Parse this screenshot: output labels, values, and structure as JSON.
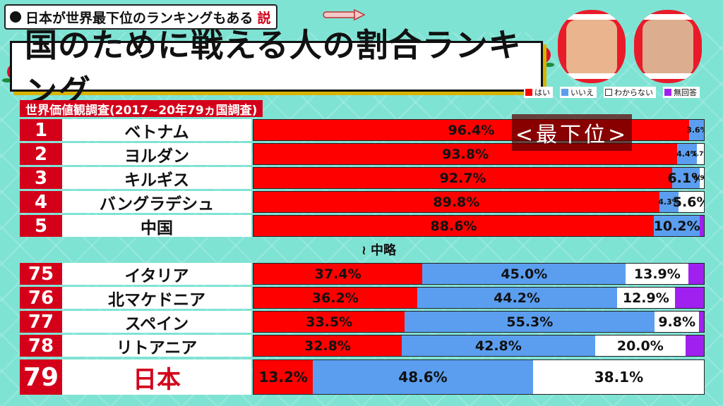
{
  "header": {
    "topic_main": "日本が世界最下位のランキングもある",
    "topic_emph": "説",
    "title": "国のために戦える人の割合ランキング"
  },
  "legend": [
    {
      "label": "はい",
      "color": "#ff0000"
    },
    {
      "label": "いいえ",
      "color": "#5b9ef0"
    },
    {
      "label": "わからない",
      "color": "#ffffff"
    },
    {
      "label": "無回答",
      "color": "#a020f0"
    }
  ],
  "subtitle": "世界価値観調査(2017~20年79ヵ国調査)",
  "omitted_label": "中略",
  "worst_label": "<最下位>",
  "chart_data": {
    "type": "bar",
    "stacked": true,
    "orientation": "horizontal",
    "title": "国のために戦える人の割合ランキング",
    "source_note": "世界価値観調査(2017~20年79ヵ国調査)",
    "series_names": [
      "はい",
      "いいえ",
      "わからない",
      "無回答"
    ],
    "rows": [
      {
        "rank": "1",
        "country": "ベトナム",
        "values": [
          96.4,
          3.6,
          0,
          0
        ],
        "labels": [
          "96.4%",
          "3.6%",
          "",
          ""
        ]
      },
      {
        "rank": "2",
        "country": "ヨルダン",
        "values": [
          93.8,
          4.4,
          1.7,
          0.1
        ],
        "labels": [
          "93.8%",
          "4.4%",
          "1.7%",
          ""
        ]
      },
      {
        "rank": "3",
        "country": "キルギス",
        "values": [
          92.7,
          6.1,
          0.9,
          0.3
        ],
        "labels": [
          "92.7%",
          "6.1%",
          "0.9%",
          ""
        ]
      },
      {
        "rank": "4",
        "country": "バングラデシュ",
        "values": [
          89.8,
          4.3,
          5.6,
          0.3
        ],
        "labels": [
          "89.8%",
          "4.3%",
          "5.6%",
          ""
        ]
      },
      {
        "rank": "5",
        "country": "中国",
        "values": [
          88.6,
          10.2,
          0,
          1.2
        ],
        "labels": [
          "88.6%",
          "10.2%",
          "",
          ""
        ]
      },
      {
        "rank": "75",
        "country": "イタリア",
        "values": [
          37.4,
          45.0,
          13.9,
          3.7
        ],
        "labels": [
          "37.4%",
          "45.0%",
          "13.9%",
          ""
        ]
      },
      {
        "rank": "76",
        "country": "北マケドニア",
        "values": [
          36.2,
          44.2,
          12.9,
          6.7
        ],
        "labels": [
          "36.2%",
          "44.2%",
          "12.9%",
          ""
        ]
      },
      {
        "rank": "77",
        "country": "スペイン",
        "values": [
          33.5,
          55.3,
          9.8,
          1.4
        ],
        "labels": [
          "33.5%",
          "55.3%",
          "9.8%",
          ""
        ]
      },
      {
        "rank": "78",
        "country": "リトアニア",
        "values": [
          32.8,
          42.8,
          20.0,
          4.4
        ],
        "labels": [
          "32.8%",
          "42.8%",
          "20.0%",
          ""
        ]
      },
      {
        "rank": "79",
        "country": "日本",
        "values": [
          13.2,
          48.6,
          38.1,
          0.1
        ],
        "labels": [
          "13.2%",
          "48.6%",
          "38.1%",
          ""
        ]
      }
    ]
  }
}
